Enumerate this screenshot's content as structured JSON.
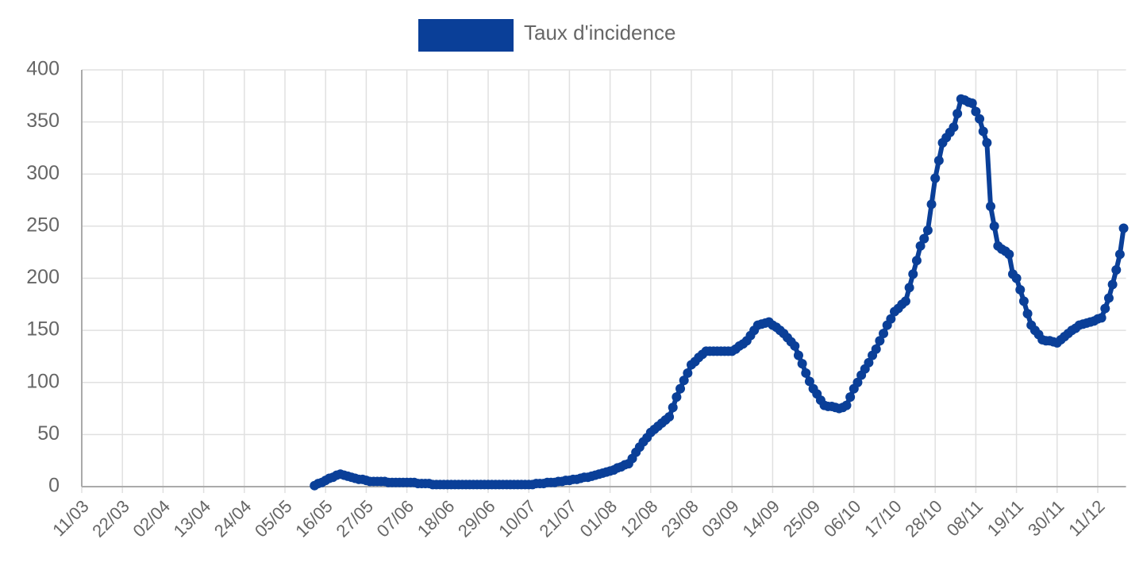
{
  "chart_data": {
    "type": "line",
    "categories": [
      "11/03",
      null,
      null,
      null,
      null,
      null,
      null,
      null,
      null,
      null,
      null,
      "22/03",
      null,
      null,
      null,
      null,
      null,
      null,
      null,
      null,
      null,
      null,
      "02/04",
      null,
      null,
      null,
      null,
      null,
      null,
      null,
      null,
      null,
      null,
      "13/04",
      null,
      null,
      null,
      null,
      null,
      null,
      null,
      null,
      null,
      null,
      "24/04",
      null,
      null,
      null,
      null,
      null,
      null,
      null,
      null,
      null,
      null,
      "05/05",
      null,
      null,
      null,
      null,
      null,
      null,
      null,
      null,
      null,
      null,
      "16/05",
      null,
      null,
      null,
      null,
      null,
      null,
      null,
      null,
      null,
      null,
      "27/05",
      null,
      null,
      null,
      null,
      null,
      null,
      null,
      null,
      null,
      null,
      "07/06",
      null,
      null,
      null,
      null,
      null,
      null,
      null,
      null,
      null,
      null,
      "18/06",
      null,
      null,
      null,
      null,
      null,
      null,
      null,
      null,
      null,
      null,
      "29/06",
      null,
      null,
      null,
      null,
      null,
      null,
      null,
      null,
      null,
      null,
      "10/07",
      null,
      null,
      null,
      null,
      null,
      null,
      null,
      null,
      null,
      null,
      "21/07",
      null,
      null,
      null,
      null,
      null,
      null,
      null,
      null,
      null,
      null,
      "01/08",
      null,
      null,
      null,
      null,
      null,
      null,
      null,
      null,
      null,
      null,
      "12/08",
      null,
      null,
      null,
      null,
      null,
      null,
      null,
      null,
      null,
      null,
      "23/08",
      null,
      null,
      null,
      null,
      null,
      null,
      null,
      null,
      null,
      null,
      "03/09",
      null,
      null,
      null,
      null,
      null,
      null,
      null,
      null,
      null,
      null,
      "14/09",
      null,
      null,
      null,
      null,
      null,
      null,
      null,
      null,
      null,
      null,
      "25/09",
      null,
      null,
      null,
      null,
      null,
      null,
      null,
      null,
      null,
      null,
      "06/10",
      null,
      null,
      null,
      null,
      null,
      null,
      null,
      null,
      null,
      null,
      "17/10",
      null,
      null,
      null,
      null,
      null,
      null,
      null,
      null,
      null,
      null,
      "28/10",
      null,
      null,
      null,
      null,
      null,
      null,
      null,
      null,
      null,
      null,
      "08/11",
      null,
      null,
      null,
      null,
      null,
      null,
      null,
      null,
      null,
      null,
      "19/11",
      null,
      null,
      null,
      null,
      null,
      null,
      null,
      null,
      null,
      null,
      "30/11",
      null,
      null,
      null,
      null,
      null,
      null,
      null,
      null,
      null,
      null,
      "11/12",
      null,
      null,
      null,
      null,
      null,
      null,
      null
    ],
    "series": [
      {
        "name": "Taux d'incidence",
        "color": "#0a3f98",
        "values": [
          null,
          null,
          null,
          null,
          null,
          null,
          null,
          null,
          null,
          null,
          null,
          null,
          null,
          null,
          null,
          null,
          null,
          null,
          null,
          null,
          null,
          null,
          null,
          null,
          null,
          null,
          null,
          null,
          null,
          null,
          null,
          null,
          null,
          null,
          null,
          null,
          null,
          null,
          null,
          null,
          null,
          null,
          null,
          null,
          null,
          null,
          null,
          null,
          null,
          null,
          null,
          null,
          null,
          null,
          null,
          null,
          null,
          null,
          null,
          null,
          null,
          null,
          null,
          1,
          3,
          4,
          6,
          8,
          9,
          11,
          12,
          11,
          10,
          9,
          8,
          7,
          7,
          6,
          5,
          5,
          5,
          5,
          5,
          4,
          4,
          4,
          4,
          4,
          4,
          4,
          4,
          3,
          3,
          3,
          3,
          2,
          2,
          2,
          2,
          2,
          2,
          2,
          2,
          2,
          2,
          2,
          2,
          2,
          2,
          2,
          2,
          2,
          2,
          2,
          2,
          2,
          2,
          2,
          2,
          2,
          2,
          2,
          2,
          3,
          3,
          3,
          4,
          4,
          4,
          5,
          5,
          6,
          6,
          7,
          7,
          8,
          9,
          9,
          10,
          11,
          12,
          13,
          14,
          15,
          16,
          18,
          19,
          21,
          22,
          27,
          33,
          38,
          43,
          47,
          52,
          55,
          58,
          61,
          64,
          67,
          76,
          86,
          94,
          102,
          109,
          117,
          120,
          124,
          127,
          130,
          130,
          130,
          130,
          130,
          130,
          130,
          130,
          132,
          135,
          137,
          140,
          145,
          150,
          155,
          156,
          157,
          158,
          155,
          153,
          150,
          147,
          143,
          139,
          135,
          126,
          118,
          109,
          101,
          94,
          89,
          83,
          78,
          77,
          77,
          76,
          75,
          76,
          78,
          86,
          94,
          100,
          107,
          113,
          119,
          126,
          132,
          140,
          147,
          155,
          161,
          168,
          171,
          175,
          178,
          191,
          204,
          217,
          231,
          238,
          246,
          271,
          296,
          313,
          330,
          335,
          340,
          345,
          358,
          372,
          371,
          369,
          368,
          360,
          353,
          341,
          330,
          269,
          250,
          231,
          228,
          226,
          223,
          204,
          200,
          189,
          178,
          166,
          155,
          150,
          146,
          141,
          140,
          140,
          139,
          138,
          141,
          144,
          147,
          150,
          152,
          155,
          156,
          157,
          158,
          159,
          161,
          162,
          171,
          181,
          194,
          208,
          223,
          248
        ]
      }
    ],
    "ylim": [
      0,
      400
    ],
    "yticks": [
      0,
      50,
      100,
      150,
      200,
      250,
      300,
      350,
      400
    ],
    "grid": true,
    "legend": "top"
  }
}
